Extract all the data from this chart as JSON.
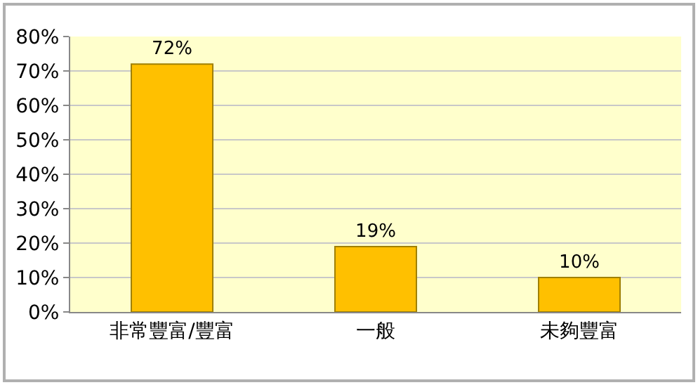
{
  "chart_data": {
    "type": "bar",
    "categories": [
      "非常豐富/豐富",
      "一般",
      "未夠豐富"
    ],
    "values": [
      72,
      19,
      10
    ],
    "color": "#ffc000",
    "value_labels": [
      "72%",
      "19%",
      "10%"
    ],
    "ylim": [
      0,
      80
    ],
    "yticks": [
      {
        "value": 0,
        "label": "0%"
      },
      {
        "value": 10,
        "label": "10%"
      },
      {
        "value": 20,
        "label": "20%"
      },
      {
        "value": 30,
        "label": "30%"
      },
      {
        "value": 40,
        "label": "40%"
      },
      {
        "value": 50,
        "label": "50%"
      },
      {
        "value": 60,
        "label": "60%"
      },
      {
        "value": 70,
        "label": "70%"
      },
      {
        "value": 80,
        "label": "80%"
      }
    ],
    "grid": "y"
  }
}
